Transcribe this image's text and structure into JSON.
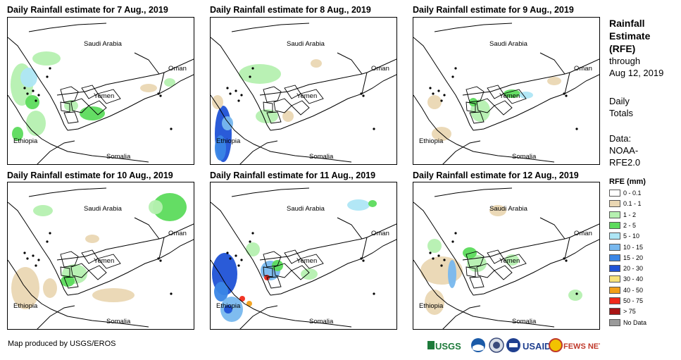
{
  "panels": [
    {
      "title": "Daily Rainfall estimate for 7 Aug., 2019"
    },
    {
      "title": "Daily Rainfall estimate for 8 Aug., 2019"
    },
    {
      "title": "Daily Rainfall estimate for 9 Aug., 2019"
    },
    {
      "title": "Daily Rainfall estimate for 10 Aug., 2019"
    },
    {
      "title": "Daily Rainfall estimate for 11 Aug., 2019"
    },
    {
      "title": "Daily Rainfall estimate for 12 Aug., 2019"
    }
  ],
  "place_labels": {
    "saudi": "Saudi Arabia",
    "oman": "Oman",
    "yemen": "Yemen",
    "ethiopia": "Ethiopia",
    "somalia": "Somalia"
  },
  "side": {
    "title_line1": "Rainfall",
    "title_line2": "Estimate",
    "title_line3": "(RFE)",
    "through": "through",
    "date": "Aug 12, 2019",
    "daily": "Daily",
    "totals": "Totals",
    "data_label": "Data:",
    "data_source_1": "NOAA-",
    "data_source_2": "RFE2.0"
  },
  "legend": {
    "title": "RFE (mm)",
    "items": [
      {
        "label": "0 - 0.1",
        "color": "#ffffff"
      },
      {
        "label": "0.1 - 1",
        "color": "#ead7b3"
      },
      {
        "label": "1 - 2",
        "color": "#b5f0b0"
      },
      {
        "label": "2 - 5",
        "color": "#5cdb5c"
      },
      {
        "label": "5 - 10",
        "color": "#aee6f5"
      },
      {
        "label": "10 - 15",
        "color": "#78b8ee"
      },
      {
        "label": "15 - 20",
        "color": "#3a86e6"
      },
      {
        "label": "20 - 30",
        "color": "#1f52d6"
      },
      {
        "label": "30 - 40",
        "color": "#f7e27a"
      },
      {
        "label": "40 - 50",
        "color": "#f2a01a"
      },
      {
        "label": "50 - 75",
        "color": "#f02a1a"
      },
      {
        "label": "> 75",
        "color": "#a81414"
      },
      {
        "label": "No Data",
        "color": "#9a9a9a"
      }
    ]
  },
  "credit": "Map produced by USGS/EROS",
  "logos": {
    "usgs": "USGS",
    "usaid": "USAID",
    "fewsnet": "FEWS NET"
  }
}
